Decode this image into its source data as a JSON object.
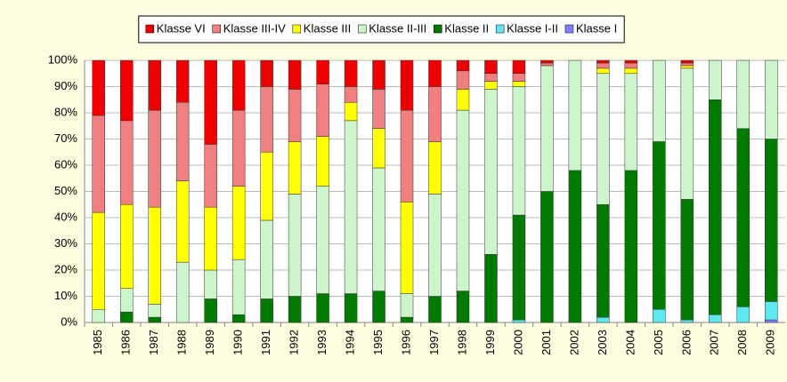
{
  "chart_data": {
    "type": "stacked_bar_100",
    "categories": [
      "1985",
      "1986",
      "1987",
      "1988",
      "1989",
      "1990",
      "1991",
      "1992",
      "1993",
      "1994",
      "1995",
      "1996",
      "1997",
      "1998",
      "1999",
      "2000",
      "2001",
      "2002",
      "2003",
      "2004",
      "2005",
      "2006",
      "2007",
      "2008",
      "2009"
    ],
    "series": [
      {
        "name": "Klasse I",
        "color": "#8080ff",
        "values": [
          0,
          0,
          0,
          0,
          0,
          0,
          0,
          0,
          0,
          0,
          0,
          0,
          0,
          0,
          0,
          0,
          0,
          0,
          0,
          0,
          0,
          0,
          0,
          0,
          1
        ]
      },
      {
        "name": "Klasse I-II",
        "color": "#5fe8f0",
        "values": [
          0,
          0,
          0,
          0,
          0,
          0,
          0,
          0,
          0,
          0,
          0,
          0,
          0,
          0,
          0,
          1,
          0,
          0,
          2,
          0,
          5,
          1,
          3,
          6,
          7
        ]
      },
      {
        "name": "Klasse II",
        "color": "#007a00",
        "values": [
          0,
          4,
          2,
          0,
          9,
          3,
          9,
          10,
          11,
          11,
          12,
          2,
          10,
          12,
          26,
          40,
          50,
          58,
          43,
          58,
          64,
          46,
          82,
          68,
          62
        ]
      },
      {
        "name": "Klasse II-III",
        "color": "#ccf5cc",
        "values": [
          5,
          9,
          5,
          23,
          11,
          21,
          30,
          39,
          41,
          66,
          47,
          9,
          39,
          69,
          63,
          49,
          48,
          42,
          50,
          37,
          31,
          50,
          15,
          26,
          30
        ]
      },
      {
        "name": "Klasse III",
        "color": "#ffff00",
        "values": [
          37,
          32,
          37,
          31,
          24,
          28,
          26,
          20,
          19,
          7,
          15,
          35,
          20,
          8,
          3,
          2,
          0,
          0,
          2,
          2,
          0,
          1,
          0,
          0,
          0
        ]
      },
      {
        "name": "Klasse III-IV",
        "color": "#f08080",
        "values": [
          37,
          32,
          37,
          30,
          24,
          29,
          25,
          20,
          20,
          6,
          15,
          35,
          21,
          7,
          3,
          3,
          1,
          0,
          2,
          2,
          0,
          1,
          0,
          0,
          0
        ]
      },
      {
        "name": "Klasse VI",
        "color": "#ee0000",
        "values": [
          21,
          23,
          19,
          16,
          32,
          19,
          10,
          11,
          9,
          10,
          11,
          19,
          10,
          4,
          5,
          5,
          1,
          0,
          1,
          1,
          0,
          1,
          0,
          0,
          0
        ]
      }
    ],
    "ylim": [
      0,
      100
    ],
    "yticks": [
      {
        "value": 0,
        "label": "0%"
      },
      {
        "value": 10,
        "label": "10%"
      },
      {
        "value": 20,
        "label": "20%"
      },
      {
        "value": 30,
        "label": "30%"
      },
      {
        "value": 40,
        "label": "40%"
      },
      {
        "value": 50,
        "label": "50%"
      },
      {
        "value": 60,
        "label": "60%"
      },
      {
        "value": 70,
        "label": "70%"
      },
      {
        "value": 80,
        "label": "80%"
      },
      {
        "value": 90,
        "label": "90%"
      },
      {
        "value": 100,
        "label": "100%"
      }
    ],
    "grid": true,
    "legend": "top"
  }
}
